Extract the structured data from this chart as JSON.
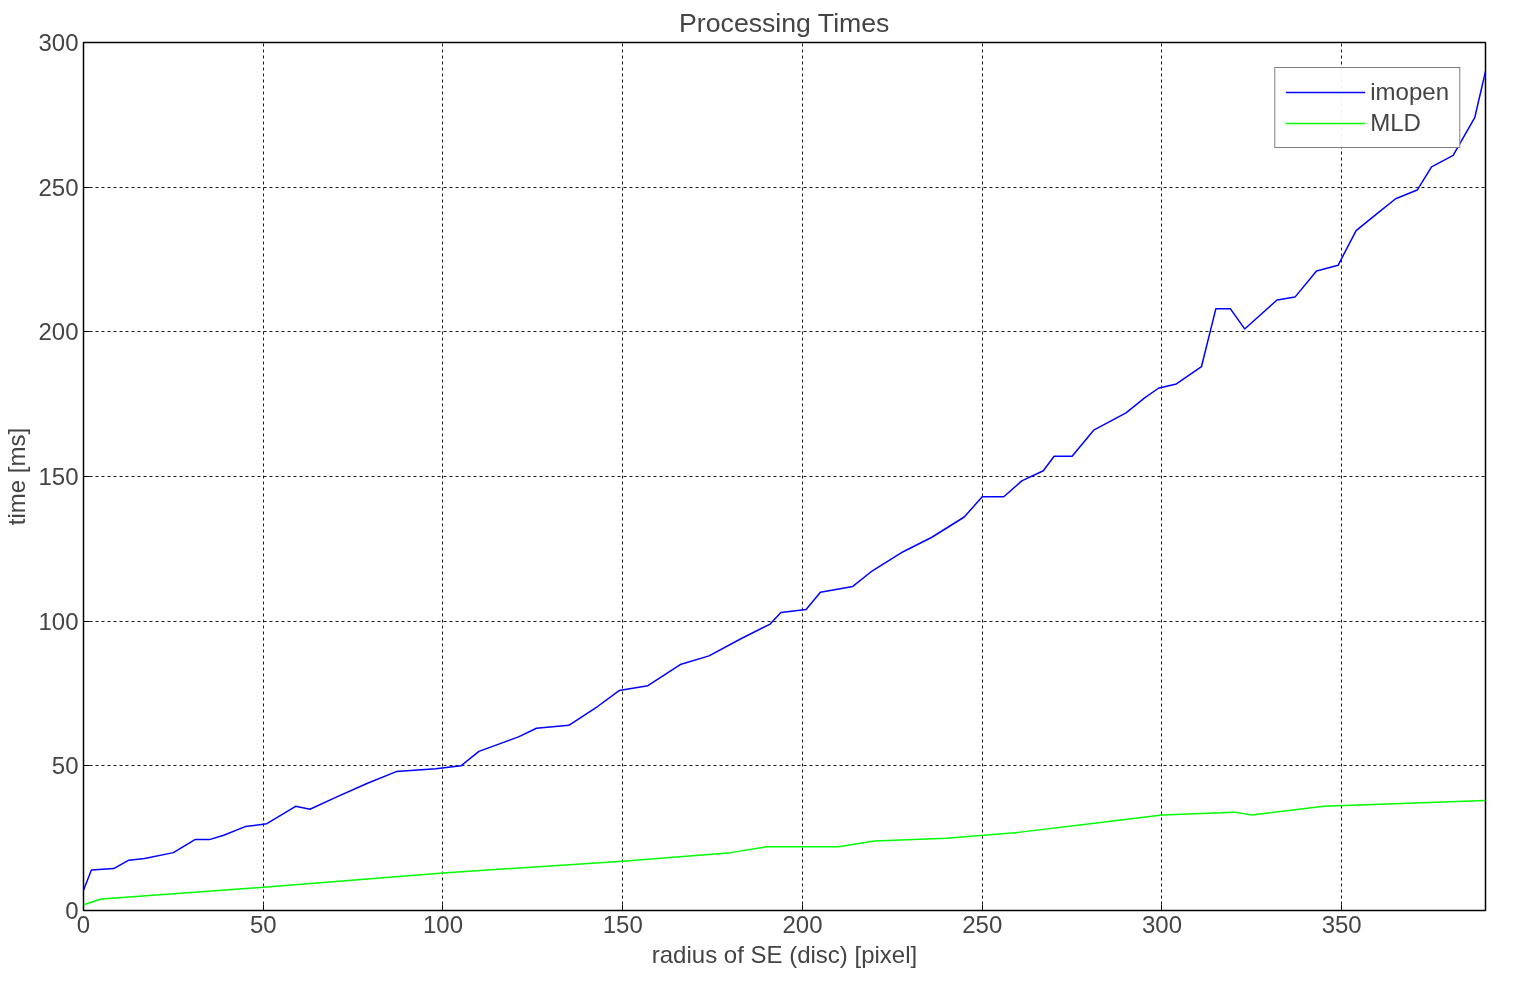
{
  "chart_data": {
    "type": "line",
    "title": "Processing Times",
    "xlabel": "radius of SE (disc) [pixel]",
    "ylabel": "time [ms]",
    "xlim": [
      0,
      390
    ],
    "ylim": [
      0,
      300
    ],
    "xticks": [
      0,
      50,
      100,
      150,
      200,
      250,
      300,
      350
    ],
    "yticks": [
      0,
      50,
      100,
      150,
      200,
      250,
      300
    ],
    "grid": true,
    "legend": "top right",
    "line_style": "solid",
    "marker": "none",
    "series": [
      {
        "name": "imopen",
        "color": "#0000ff",
        "x": [
          0,
          2.2,
          8.4,
          12.6,
          17,
          25,
          31,
          35,
          39,
          45,
          51,
          59,
          63,
          70,
          79,
          87,
          98,
          105,
          110,
          121,
          126,
          135,
          143,
          149,
          157,
          166,
          174,
          183,
          191,
          194,
          201,
          205,
          214,
          219,
          228,
          236,
          245,
          250,
          256,
          261,
          267,
          270,
          275,
          281,
          290,
          295,
          299,
          304,
          311,
          315,
          319,
          323,
          332,
          337,
          343,
          349,
          354,
          360,
          365,
          371,
          375,
          381,
          387,
          390
        ],
        "values": [
          7,
          14,
          14.5,
          17.4,
          18,
          20,
          24.5,
          24.5,
          26,
          29,
          30,
          36,
          35,
          39,
          44,
          48,
          49,
          50,
          55,
          60,
          63,
          64,
          70.5,
          76,
          77.7,
          85,
          88,
          94,
          99,
          103,
          104,
          110,
          112,
          117,
          124,
          129,
          136,
          143,
          143,
          148.5,
          152,
          157,
          157,
          166,
          172,
          177,
          180.5,
          182,
          188,
          208,
          208,
          201,
          211,
          212,
          221,
          223,
          235,
          241,
          246,
          249,
          257,
          261,
          274,
          290
        ]
      },
      {
        "name": "MLD",
        "color": "#00ff00",
        "x": [
          0,
          5,
          50,
          100,
          150,
          180,
          190,
          210,
          220,
          240,
          260,
          280,
          300,
          320,
          325,
          345,
          390
        ],
        "values": [
          2,
          4,
          8,
          13,
          17,
          20,
          22,
          22,
          24,
          25,
          27,
          30,
          33,
          34,
          33,
          36,
          38
        ]
      }
    ]
  }
}
